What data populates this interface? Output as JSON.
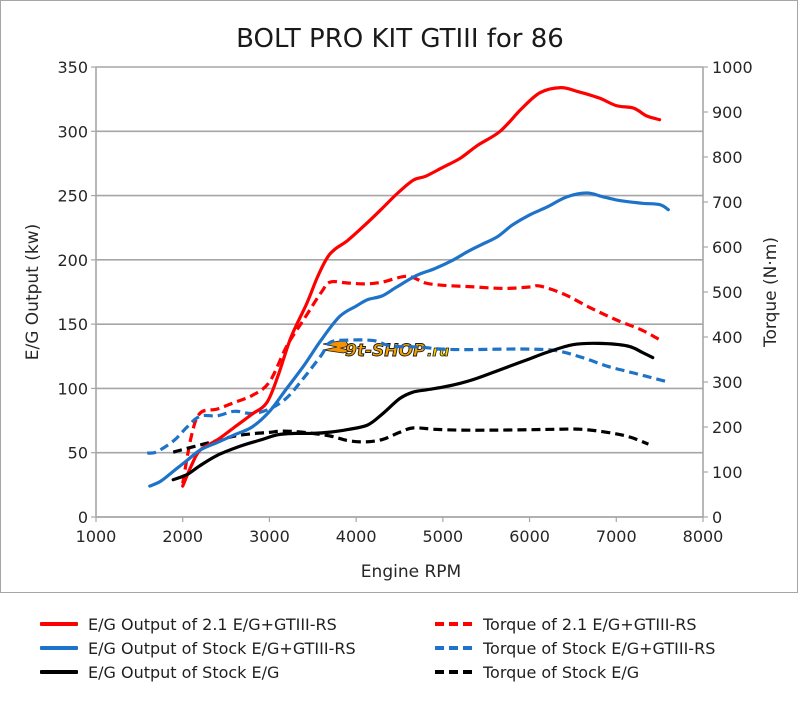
{
  "chart_data": {
    "type": "line",
    "title": "BOLT PRO KIT GTIII for 86",
    "xlabel": "Engine RPM",
    "ylabel": "E/G Output (kw)",
    "y2label": "Torque (N·m)",
    "xlim": [
      1000,
      8000
    ],
    "ylim": [
      0,
      350
    ],
    "y2lim": [
      0,
      1000
    ],
    "grid": true,
    "legend_position": "bottom",
    "x_ticks": [
      "1000",
      "2000",
      "3000",
      "4000",
      "5000",
      "6000",
      "7000",
      "8000"
    ],
    "y_ticks": [
      "0",
      "50",
      "100",
      "150",
      "200",
      "250",
      "300",
      "350"
    ],
    "y2_ticks": [
      "0",
      "100",
      "200",
      "300",
      "400",
      "500",
      "600",
      "700",
      "800",
      "900",
      "1000"
    ],
    "series": [
      {
        "name": "E/G Output of 2.1 E/G+GTIII-RS",
        "axis": "left",
        "color": "#ff0000",
        "style": "solid",
        "x": [
          2000,
          2100,
          2200,
          2400,
          2600,
          2800,
          2970,
          3100,
          3250,
          3430,
          3550,
          3660,
          3750,
          3900,
          4100,
          4300,
          4480,
          4660,
          4800,
          5000,
          5200,
          5400,
          5660,
          5900,
          6120,
          6360,
          6550,
          6800,
          7000,
          7200,
          7350,
          7500
        ],
        "values": [
          24,
          40,
          52,
          60,
          70,
          80,
          89,
          110,
          140,
          166,
          186,
          201,
          208,
          215,
          227,
          240,
          252,
          262,
          265,
          272,
          279,
          289,
          300,
          317,
          330,
          334,
          331,
          326,
          320,
          318,
          312,
          309
        ]
      },
      {
        "name": "E/G Output of Stock E/G+GTIII-RS",
        "axis": "left",
        "color": "#1e73c8",
        "style": "solid",
        "x": [
          1620,
          1750,
          1900,
          2050,
          2200,
          2400,
          2600,
          2800,
          3000,
          3200,
          3400,
          3600,
          3810,
          4000,
          4130,
          4300,
          4470,
          4700,
          4900,
          5120,
          5300,
          5450,
          5630,
          5800,
          6000,
          6200,
          6430,
          6660,
          6850,
          7050,
          7300,
          7500,
          7600
        ],
        "values": [
          24,
          28,
          36,
          44,
          52,
          58,
          64,
          70,
          82,
          100,
          118,
          138,
          156,
          164,
          169,
          172,
          179,
          188,
          193,
          200,
          207,
          212,
          218,
          227,
          235,
          241,
          249,
          252,
          249,
          246,
          244,
          243,
          239
        ]
      },
      {
        "name": "E/G Output of Stock E/G",
        "axis": "left",
        "color": "#000000",
        "style": "solid",
        "x": [
          1890,
          2050,
          2200,
          2400,
          2660,
          2900,
          3100,
          3300,
          3500,
          3700,
          3900,
          4130,
          4300,
          4500,
          4650,
          4820,
          5000,
          5200,
          5400,
          5600,
          5800,
          6000,
          6200,
          6500,
          6800,
          7130,
          7300,
          7420
        ],
        "values": [
          29,
          33,
          40,
          48,
          55,
          60,
          64,
          65,
          65,
          66,
          68,
          71.5,
          80,
          92,
          97,
          99,
          101,
          104,
          108,
          113,
          118,
          123,
          128,
          134,
          135,
          133,
          128,
          124
        ]
      },
      {
        "name": "Torque of 2.1 E/G+GTIII-RS",
        "axis": "right",
        "color": "#ff0000",
        "style": "dash",
        "x": [
          2000,
          2100,
          2200,
          2400,
          2600,
          2800,
          3000,
          3200,
          3400,
          3600,
          3700,
          3900,
          4100,
          4300,
          4590,
          4800,
          5000,
          5300,
          5700,
          6000,
          6120,
          6400,
          6700,
          7000,
          7300,
          7505
        ],
        "values": [
          75,
          180,
          231,
          240,
          255,
          270,
          300,
          380,
          440,
          500,
          522,
          520,
          518,
          522,
          535,
          520,
          515,
          512,
          508,
          511,
          513,
          495,
          465,
          438,
          415,
          393
        ]
      },
      {
        "name": "Torque of Stock E/G+GTIII-RS",
        "axis": "right",
        "color": "#1e73c8",
        "style": "dash",
        "x": [
          1590,
          1700,
          1900,
          2050,
          2200,
          2400,
          2600,
          2800,
          3000,
          3200,
          3400,
          3600,
          3700,
          3900,
          4200,
          4400,
          4700,
          5000,
          5300,
          5700,
          6000,
          6300,
          6600,
          6900,
          7200,
          7400,
          7600
        ],
        "values": [
          142,
          145,
          170,
          200,
          224,
          225,
          235,
          230,
          240,
          265,
          310,
          360,
          388,
          393,
          392,
          380,
          378,
          373,
          372,
          373,
          373,
          370,
          355,
          335,
          320,
          310,
          300
        ]
      },
      {
        "name": "Torque of Stock E/G",
        "axis": "right",
        "color": "#000000",
        "style": "dash",
        "x": [
          1890,
          2000,
          2200,
          2400,
          2600,
          2800,
          3000,
          3160,
          3400,
          3700,
          3900,
          4100,
          4300,
          4500,
          4660,
          4900,
          5200,
          5600,
          6000,
          6300,
          6600,
          6900,
          7150,
          7370
        ],
        "values": [
          144,
          150,
          160,
          170,
          180,
          185,
          188,
          191,
          188,
          180,
          170,
          167,
          172,
          188,
          198,
          195,
          193,
          193,
          194,
          195,
          195,
          188,
          178,
          162
        ]
      }
    ]
  },
  "legend": {
    "items": [
      "E/G Output of 2.1 E/G+GTIII-RS",
      "E/G Output of Stock E/G+GTIII-RS",
      "E/G Output of Stock E/G",
      "Torque of 2.1 E/G+GTIII-RS",
      "Torque of Stock E/G+GTIII-RS",
      "Torque of Stock E/G"
    ]
  },
  "watermark": {
    "text": "gt-shop.ru",
    "display_main": "9t-SHOP",
    "display_suffix": ".ru",
    "color_main": "#f39200",
    "color_accent": "#ffd500"
  }
}
